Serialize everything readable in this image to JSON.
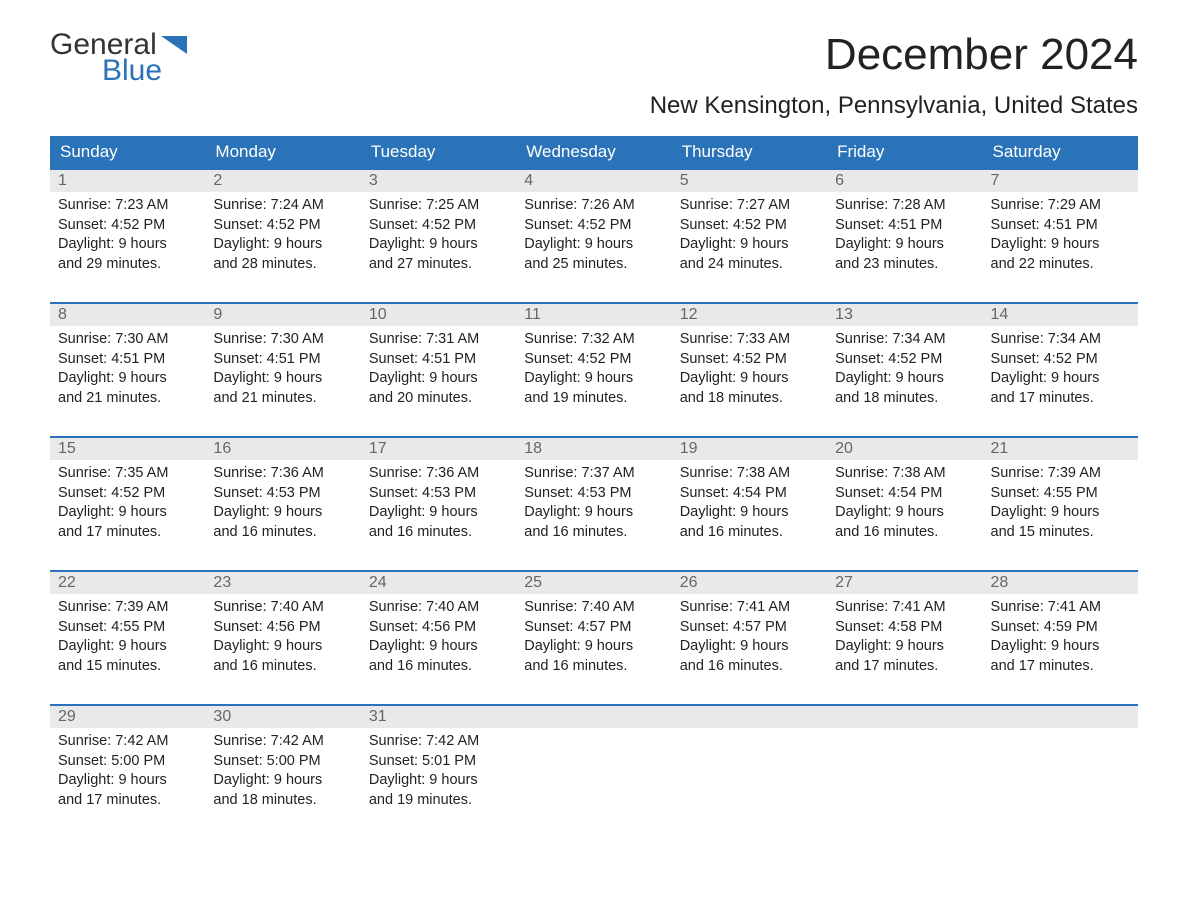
{
  "logo": {
    "general": "General",
    "blue": "Blue",
    "flag_color": "#2a73b8"
  },
  "title": "December 2024",
  "subtitle": "New Kensington, Pennsylvania, United States",
  "colors": {
    "header_bg": "#2a73b8",
    "header_text": "#ffffff",
    "daynum_bg": "#e9e9e9",
    "daynum_text": "#666666",
    "body_text": "#222222",
    "week_border": "#2a73b8",
    "page_bg": "#ffffff"
  },
  "fontsizes": {
    "title": 44,
    "subtitle": 24,
    "day_header": 17,
    "day_num": 16,
    "body": 14.5
  },
  "day_headers": [
    "Sunday",
    "Monday",
    "Tuesday",
    "Wednesday",
    "Thursday",
    "Friday",
    "Saturday"
  ],
  "weeks": [
    [
      {
        "num": "1",
        "sunrise": "Sunrise: 7:23 AM",
        "sunset": "Sunset: 4:52 PM",
        "dl1": "Daylight: 9 hours",
        "dl2": "and 29 minutes."
      },
      {
        "num": "2",
        "sunrise": "Sunrise: 7:24 AM",
        "sunset": "Sunset: 4:52 PM",
        "dl1": "Daylight: 9 hours",
        "dl2": "and 28 minutes."
      },
      {
        "num": "3",
        "sunrise": "Sunrise: 7:25 AM",
        "sunset": "Sunset: 4:52 PM",
        "dl1": "Daylight: 9 hours",
        "dl2": "and 27 minutes."
      },
      {
        "num": "4",
        "sunrise": "Sunrise: 7:26 AM",
        "sunset": "Sunset: 4:52 PM",
        "dl1": "Daylight: 9 hours",
        "dl2": "and 25 minutes."
      },
      {
        "num": "5",
        "sunrise": "Sunrise: 7:27 AM",
        "sunset": "Sunset: 4:52 PM",
        "dl1": "Daylight: 9 hours",
        "dl2": "and 24 minutes."
      },
      {
        "num": "6",
        "sunrise": "Sunrise: 7:28 AM",
        "sunset": "Sunset: 4:51 PM",
        "dl1": "Daylight: 9 hours",
        "dl2": "and 23 minutes."
      },
      {
        "num": "7",
        "sunrise": "Sunrise: 7:29 AM",
        "sunset": "Sunset: 4:51 PM",
        "dl1": "Daylight: 9 hours",
        "dl2": "and 22 minutes."
      }
    ],
    [
      {
        "num": "8",
        "sunrise": "Sunrise: 7:30 AM",
        "sunset": "Sunset: 4:51 PM",
        "dl1": "Daylight: 9 hours",
        "dl2": "and 21 minutes."
      },
      {
        "num": "9",
        "sunrise": "Sunrise: 7:30 AM",
        "sunset": "Sunset: 4:51 PM",
        "dl1": "Daylight: 9 hours",
        "dl2": "and 21 minutes."
      },
      {
        "num": "10",
        "sunrise": "Sunrise: 7:31 AM",
        "sunset": "Sunset: 4:51 PM",
        "dl1": "Daylight: 9 hours",
        "dl2": "and 20 minutes."
      },
      {
        "num": "11",
        "sunrise": "Sunrise: 7:32 AM",
        "sunset": "Sunset: 4:52 PM",
        "dl1": "Daylight: 9 hours",
        "dl2": "and 19 minutes."
      },
      {
        "num": "12",
        "sunrise": "Sunrise: 7:33 AM",
        "sunset": "Sunset: 4:52 PM",
        "dl1": "Daylight: 9 hours",
        "dl2": "and 18 minutes."
      },
      {
        "num": "13",
        "sunrise": "Sunrise: 7:34 AM",
        "sunset": "Sunset: 4:52 PM",
        "dl1": "Daylight: 9 hours",
        "dl2": "and 18 minutes."
      },
      {
        "num": "14",
        "sunrise": "Sunrise: 7:34 AM",
        "sunset": "Sunset: 4:52 PM",
        "dl1": "Daylight: 9 hours",
        "dl2": "and 17 minutes."
      }
    ],
    [
      {
        "num": "15",
        "sunrise": "Sunrise: 7:35 AM",
        "sunset": "Sunset: 4:52 PM",
        "dl1": "Daylight: 9 hours",
        "dl2": "and 17 minutes."
      },
      {
        "num": "16",
        "sunrise": "Sunrise: 7:36 AM",
        "sunset": "Sunset: 4:53 PM",
        "dl1": "Daylight: 9 hours",
        "dl2": "and 16 minutes."
      },
      {
        "num": "17",
        "sunrise": "Sunrise: 7:36 AM",
        "sunset": "Sunset: 4:53 PM",
        "dl1": "Daylight: 9 hours",
        "dl2": "and 16 minutes."
      },
      {
        "num": "18",
        "sunrise": "Sunrise: 7:37 AM",
        "sunset": "Sunset: 4:53 PM",
        "dl1": "Daylight: 9 hours",
        "dl2": "and 16 minutes."
      },
      {
        "num": "19",
        "sunrise": "Sunrise: 7:38 AM",
        "sunset": "Sunset: 4:54 PM",
        "dl1": "Daylight: 9 hours",
        "dl2": "and 16 minutes."
      },
      {
        "num": "20",
        "sunrise": "Sunrise: 7:38 AM",
        "sunset": "Sunset: 4:54 PM",
        "dl1": "Daylight: 9 hours",
        "dl2": "and 16 minutes."
      },
      {
        "num": "21",
        "sunrise": "Sunrise: 7:39 AM",
        "sunset": "Sunset: 4:55 PM",
        "dl1": "Daylight: 9 hours",
        "dl2": "and 15 minutes."
      }
    ],
    [
      {
        "num": "22",
        "sunrise": "Sunrise: 7:39 AM",
        "sunset": "Sunset: 4:55 PM",
        "dl1": "Daylight: 9 hours",
        "dl2": "and 15 minutes."
      },
      {
        "num": "23",
        "sunrise": "Sunrise: 7:40 AM",
        "sunset": "Sunset: 4:56 PM",
        "dl1": "Daylight: 9 hours",
        "dl2": "and 16 minutes."
      },
      {
        "num": "24",
        "sunrise": "Sunrise: 7:40 AM",
        "sunset": "Sunset: 4:56 PM",
        "dl1": "Daylight: 9 hours",
        "dl2": "and 16 minutes."
      },
      {
        "num": "25",
        "sunrise": "Sunrise: 7:40 AM",
        "sunset": "Sunset: 4:57 PM",
        "dl1": "Daylight: 9 hours",
        "dl2": "and 16 minutes."
      },
      {
        "num": "26",
        "sunrise": "Sunrise: 7:41 AM",
        "sunset": "Sunset: 4:57 PM",
        "dl1": "Daylight: 9 hours",
        "dl2": "and 16 minutes."
      },
      {
        "num": "27",
        "sunrise": "Sunrise: 7:41 AM",
        "sunset": "Sunset: 4:58 PM",
        "dl1": "Daylight: 9 hours",
        "dl2": "and 17 minutes."
      },
      {
        "num": "28",
        "sunrise": "Sunrise: 7:41 AM",
        "sunset": "Sunset: 4:59 PM",
        "dl1": "Daylight: 9 hours",
        "dl2": "and 17 minutes."
      }
    ],
    [
      {
        "num": "29",
        "sunrise": "Sunrise: 7:42 AM",
        "sunset": "Sunset: 5:00 PM",
        "dl1": "Daylight: 9 hours",
        "dl2": "and 17 minutes."
      },
      {
        "num": "30",
        "sunrise": "Sunrise: 7:42 AM",
        "sunset": "Sunset: 5:00 PM",
        "dl1": "Daylight: 9 hours",
        "dl2": "and 18 minutes."
      },
      {
        "num": "31",
        "sunrise": "Sunrise: 7:42 AM",
        "sunset": "Sunset: 5:01 PM",
        "dl1": "Daylight: 9 hours",
        "dl2": "and 19 minutes."
      },
      {
        "num": "",
        "sunrise": "",
        "sunset": "",
        "dl1": "",
        "dl2": "",
        "empty": true
      },
      {
        "num": "",
        "sunrise": "",
        "sunset": "",
        "dl1": "",
        "dl2": "",
        "empty": true
      },
      {
        "num": "",
        "sunrise": "",
        "sunset": "",
        "dl1": "",
        "dl2": "",
        "empty": true
      },
      {
        "num": "",
        "sunrise": "",
        "sunset": "",
        "dl1": "",
        "dl2": "",
        "empty": true
      }
    ]
  ]
}
